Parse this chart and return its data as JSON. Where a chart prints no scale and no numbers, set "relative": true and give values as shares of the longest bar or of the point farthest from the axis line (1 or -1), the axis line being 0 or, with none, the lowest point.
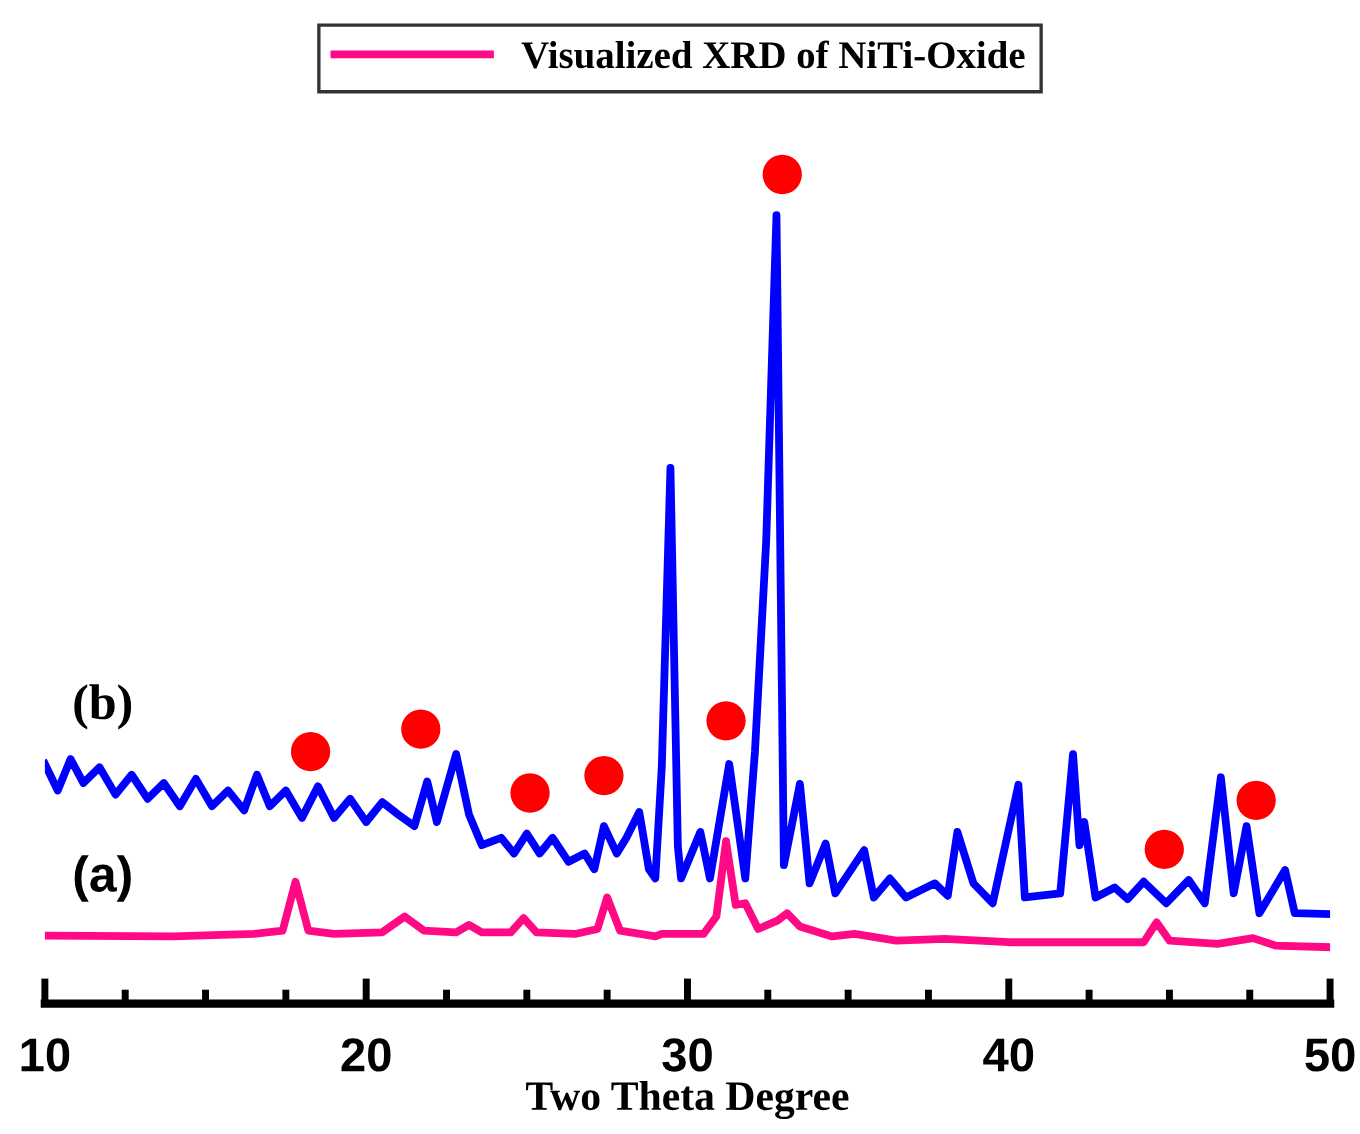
{
  "chart_data": {
    "type": "line",
    "relative": true,
    "xlabel": "Two Theta Degree",
    "xlim": [
      10,
      50
    ],
    "xticks": [
      10,
      {
        "value": 12.5,
        "label": null
      },
      {
        "value": 15,
        "label": null
      },
      {
        "value": 17.5,
        "label": null
      },
      20,
      {
        "value": 22.5,
        "label": null
      },
      {
        "value": 25,
        "label": null
      },
      {
        "value": 27.5,
        "label": null
      },
      30,
      {
        "value": 32.5,
        "label": null
      },
      {
        "value": 35,
        "label": null
      },
      {
        "value": 37.5,
        "label": null
      },
      40,
      {
        "value": 42.5,
        "label": null
      },
      {
        "value": 45,
        "label": null
      },
      {
        "value": 47.5,
        "label": null
      },
      50
    ],
    "grid": false,
    "legend": "top",
    "marker": "none",
    "line_style": "solid",
    "annotations": [
      "(b)",
      "(a)"
    ],
    "series": [
      {
        "name": "Visualized XRD of NiTi-Oxide",
        "color": "#ff0a84",
        "x": [
          10,
          14,
          16.5,
          17.4,
          17.8,
          18.2,
          19,
          20.5,
          21.2,
          21.8,
          22.8,
          23.2,
          23.6,
          24.5,
          24.9,
          25.3,
          26.5,
          27.2,
          27.5,
          27.9,
          29,
          29.2,
          30.5,
          30.9,
          31.2,
          31.5,
          31.8,
          32.2,
          32.8,
          33.1,
          33.5,
          34.5,
          35.2,
          36.5,
          38,
          40,
          42,
          44.2,
          44.6,
          45,
          46.5,
          47.6,
          48.3,
          50
        ],
        "values": [
          0.082,
          0.081,
          0.084,
          0.088,
          0.147,
          0.088,
          0.084,
          0.086,
          0.105,
          0.088,
          0.086,
          0.095,
          0.086,
          0.086,
          0.103,
          0.086,
          0.084,
          0.09,
          0.128,
          0.088,
          0.081,
          0.084,
          0.084,
          0.105,
          0.196,
          0.119,
          0.121,
          0.09,
          0.1,
          0.109,
          0.093,
          0.081,
          0.084,
          0.076,
          0.078,
          0.074,
          0.074,
          0.074,
          0.098,
          0.076,
          0.072,
          0.079,
          0.07,
          0.068
        ]
      },
      {
        "color": "#0000ff",
        "x": [
          10,
          10.4,
          10.8,
          11.2,
          11.7,
          12.2,
          12.7,
          13.2,
          13.7,
          14.2,
          14.7,
          15.2,
          15.7,
          16.2,
          16.6,
          17.0,
          17.5,
          18.0,
          18.5,
          19.0,
          19.5,
          20.0,
          20.5,
          21.0,
          21.5,
          21.9,
          22.2,
          22.8,
          23.2,
          23.6,
          24.2,
          24.6,
          25.0,
          25.4,
          25.8,
          26.3,
          26.8,
          27.1,
          27.4,
          27.8,
          28.1,
          28.5,
          28.8,
          29.0,
          29.2,
          29.47,
          29.7,
          29.8,
          30.4,
          30.7,
          31.3,
          31.8,
          32.1,
          32.45,
          32.77,
          33.0,
          33.5,
          33.8,
          34.3,
          34.6,
          35.5,
          35.8,
          36.3,
          36.8,
          37.7,
          38.1,
          38.4,
          38.9,
          39.5,
          40.3,
          40.5,
          41.6,
          42.0,
          42.2,
          42.35,
          42.7,
          43.3,
          43.7,
          44.2,
          44.9,
          45.6,
          46.1,
          46.6,
          47.0,
          47.4,
          47.8,
          48.6,
          48.9,
          50
        ],
        "values": [
          0.289,
          0.257,
          0.295,
          0.266,
          0.285,
          0.252,
          0.276,
          0.247,
          0.266,
          0.238,
          0.271,
          0.238,
          0.257,
          0.233,
          0.276,
          0.238,
          0.257,
          0.224,
          0.262,
          0.224,
          0.247,
          0.219,
          0.243,
          0.228,
          0.214,
          0.268,
          0.219,
          0.301,
          0.228,
          0.191,
          0.2,
          0.181,
          0.205,
          0.181,
          0.2,
          0.171,
          0.181,
          0.162,
          0.214,
          0.181,
          0.2,
          0.231,
          0.162,
          0.151,
          0.285,
          0.646,
          0.19,
          0.151,
          0.207,
          0.151,
          0.289,
          0.151,
          0.304,
          0.558,
          0.951,
          0.167,
          0.265,
          0.145,
          0.193,
          0.133,
          0.185,
          0.128,
          0.151,
          0.128,
          0.145,
          0.13,
          0.207,
          0.145,
          0.121,
          0.264,
          0.128,
          0.133,
          0.301,
          0.191,
          0.219,
          0.128,
          0.14,
          0.126,
          0.147,
          0.121,
          0.149,
          0.121,
          0.273,
          0.133,
          0.214,
          0.109,
          0.161,
          0.109,
          0.108
        ]
      },
      {
        "type": "scatter",
        "marker": "circle",
        "color": "#ff0000",
        "x": [
          18.27,
          21.7,
          25.1,
          27.4,
          31.2,
          32.95,
          44.84,
          47.7
        ],
        "values": [
          0.304,
          0.331,
          0.254,
          0.275,
          0.341,
          1.0,
          0.186,
          0.245
        ]
      }
    ]
  }
}
